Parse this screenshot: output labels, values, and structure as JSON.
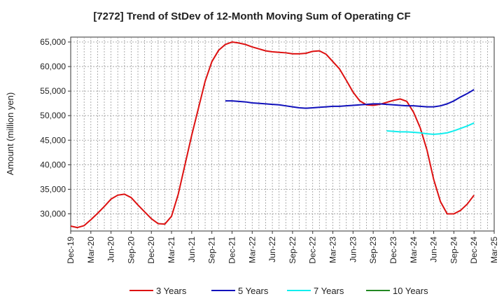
{
  "chart_data": {
    "type": "line",
    "title": "[7272]  Trend of StDev of 12-Month Moving Sum of Operating CF",
    "ylabel": "Amount (million yen)",
    "xlabel": "",
    "ylim": [
      26500,
      66000
    ],
    "yticks": [
      30000,
      35000,
      40000,
      45000,
      50000,
      55000,
      60000,
      65000
    ],
    "ytick_labels": [
      "30,000",
      "35,000",
      "40,000",
      "45,000",
      "50,000",
      "55,000",
      "60,000",
      "65,000"
    ],
    "xlim": [
      "Dec-19",
      "Mar-25"
    ],
    "xtick_labels": [
      "Dec-19",
      "Mar-20",
      "Jun-20",
      "Sep-20",
      "Dec-20",
      "Mar-21",
      "Jun-21",
      "Sep-21",
      "Dec-21",
      "Mar-22",
      "Jun-22",
      "Sep-22",
      "Dec-22",
      "Mar-23",
      "Jun-23",
      "Sep-23",
      "Dec-23",
      "Mar-24",
      "Jun-24",
      "Sep-24",
      "Dec-24",
      "Mar-25"
    ],
    "grid": true,
    "legend_position": "bottom",
    "series": [
      {
        "name": "3 Years",
        "color": "#dd1111",
        "points": [
          [
            "Dec-19",
            27500
          ],
          [
            "Jan-20",
            27200
          ],
          [
            "Feb-20",
            27600
          ],
          [
            "Mar-20",
            28800
          ],
          [
            "Apr-20",
            30100
          ],
          [
            "May-20",
            31500
          ],
          [
            "Jun-20",
            33000
          ],
          [
            "Jul-20",
            33800
          ],
          [
            "Aug-20",
            34000
          ],
          [
            "Sep-20",
            33300
          ],
          [
            "Oct-20",
            31800
          ],
          [
            "Nov-20",
            30400
          ],
          [
            "Dec-20",
            29000
          ],
          [
            "Jan-21",
            28000
          ],
          [
            "Feb-21",
            27900
          ],
          [
            "Mar-21",
            29500
          ],
          [
            "Apr-21",
            34000
          ],
          [
            "May-21",
            40000
          ],
          [
            "Jun-21",
            46000
          ],
          [
            "Jul-21",
            51500
          ],
          [
            "Aug-21",
            57000
          ],
          [
            "Sep-21",
            61000
          ],
          [
            "Oct-21",
            63300
          ],
          [
            "Nov-21",
            64500
          ],
          [
            "Dec-21",
            65000
          ],
          [
            "Jan-22",
            64800
          ],
          [
            "Feb-22",
            64500
          ],
          [
            "Mar-22",
            64000
          ],
          [
            "Apr-22",
            63600
          ],
          [
            "May-22",
            63200
          ],
          [
            "Jun-22",
            63000
          ],
          [
            "Jul-22",
            62900
          ],
          [
            "Aug-22",
            62800
          ],
          [
            "Sep-22",
            62600
          ],
          [
            "Oct-22",
            62600
          ],
          [
            "Nov-22",
            62700
          ],
          [
            "Dec-22",
            63100
          ],
          [
            "Jan-23",
            63200
          ],
          [
            "Feb-23",
            62500
          ],
          [
            "Mar-23",
            61000
          ],
          [
            "Apr-23",
            59500
          ],
          [
            "May-23",
            57200
          ],
          [
            "Jun-23",
            54800
          ],
          [
            "Jul-23",
            53000
          ],
          [
            "Aug-23",
            52200
          ],
          [
            "Sep-23",
            52100
          ],
          [
            "Oct-23",
            52300
          ],
          [
            "Nov-23",
            52700
          ],
          [
            "Dec-23",
            53100
          ],
          [
            "Jan-24",
            53400
          ],
          [
            "Feb-24",
            52900
          ],
          [
            "Mar-24",
            50700
          ],
          [
            "Apr-24",
            47500
          ],
          [
            "May-24",
            43000
          ],
          [
            "Jun-24",
            37000
          ],
          [
            "Jul-24",
            32500
          ],
          [
            "Aug-24",
            30000
          ],
          [
            "Sep-24",
            30000
          ],
          [
            "Oct-24",
            30700
          ],
          [
            "Nov-24",
            32000
          ],
          [
            "Dec-24",
            33800
          ]
        ]
      },
      {
        "name": "5 Years",
        "color": "#1111bb",
        "points": [
          [
            "Nov-21",
            53000
          ],
          [
            "Dec-21",
            53000
          ],
          [
            "Jan-22",
            52900
          ],
          [
            "Feb-22",
            52800
          ],
          [
            "Mar-22",
            52600
          ],
          [
            "Apr-22",
            52500
          ],
          [
            "May-22",
            52400
          ],
          [
            "Jun-22",
            52300
          ],
          [
            "Jul-22",
            52200
          ],
          [
            "Aug-22",
            52000
          ],
          [
            "Sep-22",
            51800
          ],
          [
            "Oct-22",
            51600
          ],
          [
            "Nov-22",
            51500
          ],
          [
            "Dec-22",
            51600
          ],
          [
            "Jan-23",
            51700
          ],
          [
            "Feb-23",
            51800
          ],
          [
            "Mar-23",
            51900
          ],
          [
            "Apr-23",
            51900
          ],
          [
            "May-23",
            52000
          ],
          [
            "Jun-23",
            52100
          ],
          [
            "Jul-23",
            52200
          ],
          [
            "Aug-23",
            52300
          ],
          [
            "Sep-23",
            52400
          ],
          [
            "Oct-23",
            52400
          ],
          [
            "Nov-23",
            52300
          ],
          [
            "Dec-23",
            52200
          ],
          [
            "Jan-24",
            52100
          ],
          [
            "Feb-24",
            52000
          ],
          [
            "Mar-24",
            52000
          ],
          [
            "Apr-24",
            51900
          ],
          [
            "May-24",
            51800
          ],
          [
            "Jun-24",
            51800
          ],
          [
            "Jul-24",
            52000
          ],
          [
            "Aug-24",
            52400
          ],
          [
            "Sep-24",
            53000
          ],
          [
            "Oct-24",
            53800
          ],
          [
            "Nov-24",
            54500
          ],
          [
            "Dec-24",
            55300
          ]
        ]
      },
      {
        "name": "7 Years",
        "color": "#11eeee",
        "points": [
          [
            "Nov-23",
            46900
          ],
          [
            "Dec-23",
            46800
          ],
          [
            "Jan-24",
            46700
          ],
          [
            "Feb-24",
            46700
          ],
          [
            "Mar-24",
            46600
          ],
          [
            "Apr-24",
            46500
          ],
          [
            "May-24",
            46300
          ],
          [
            "Jun-24",
            46200
          ],
          [
            "Jul-24",
            46300
          ],
          [
            "Aug-24",
            46500
          ],
          [
            "Sep-24",
            46900
          ],
          [
            "Oct-24",
            47400
          ],
          [
            "Nov-24",
            47900
          ],
          [
            "Dec-24",
            48500
          ]
        ]
      },
      {
        "name": "10 Years",
        "color": "#228822",
        "points": []
      }
    ]
  }
}
